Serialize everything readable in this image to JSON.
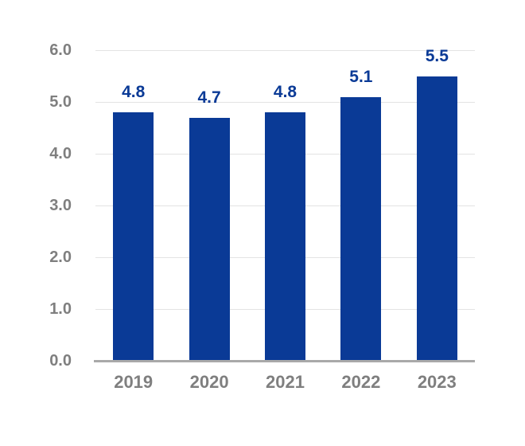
{
  "chart_data": {
    "type": "bar",
    "title": "",
    "xlabel": "",
    "ylabel": "",
    "categories": [
      "2019",
      "2020",
      "2021",
      "2022",
      "2023"
    ],
    "values": [
      4.8,
      4.7,
      4.8,
      5.1,
      5.5
    ],
    "data_labels": [
      "4.8",
      "4.7",
      "4.8",
      "5.1",
      "5.5"
    ],
    "ylim": [
      0,
      6
    ],
    "ytick_interval": 1,
    "ytick_labels": [
      "0.0",
      "1.0",
      "2.0",
      "3.0",
      "4.0",
      "5.0",
      "6.0"
    ],
    "grid": true,
    "legend": "none",
    "colors": {
      "bar": "#0A3A96",
      "data_label": "#0A3A96",
      "tick_label": "#7F7F7F",
      "gridline": "#E3E3E3",
      "baseline": "#A9A9A9",
      "background": "#FFFFFF"
    }
  }
}
